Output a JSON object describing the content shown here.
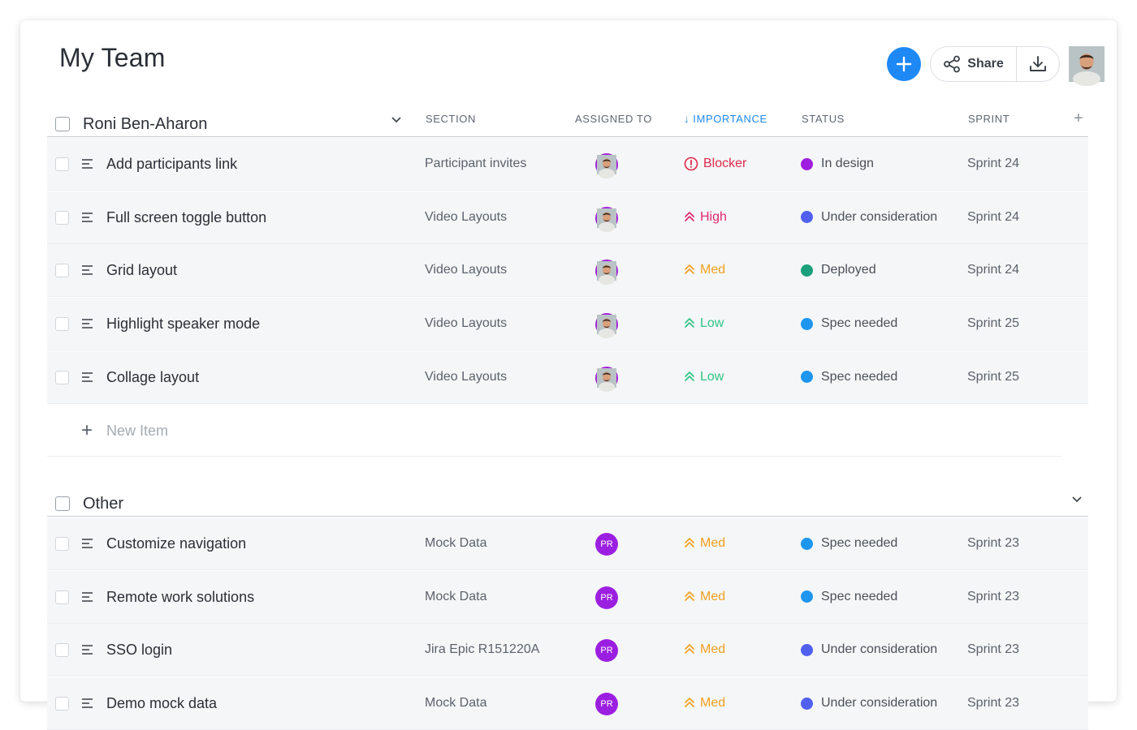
{
  "header": {
    "title": "My Team",
    "share_label": "Share",
    "icons": [
      "plus-icon",
      "share-icon",
      "download-icon"
    ]
  },
  "columns": {
    "section": "SECTION",
    "assigned_to": "ASSIGNED TO",
    "importance": "↓ IMPORTANCE",
    "status": "STATUS",
    "sprint": "SPRINT"
  },
  "groups": [
    {
      "name": "Roni Ben-Aharon",
      "new_item_label": "New Item",
      "items": [
        {
          "title": "Add participants link",
          "section": "Participant invites",
          "assignee": "photo",
          "importance": "Blocker",
          "status": "In design",
          "sprint": "Sprint 24"
        },
        {
          "title": "Full screen toggle button",
          "section": "Video Layouts",
          "assignee": "photo",
          "importance": "High",
          "status": "Under consideration",
          "sprint": "Sprint 24"
        },
        {
          "title": "Grid layout",
          "section": "Video Layouts",
          "assignee": "photo",
          "importance": "Med",
          "status": "Deployed",
          "sprint": "Sprint 24"
        },
        {
          "title": "Highlight speaker mode",
          "section": "Video Layouts",
          "assignee": "photo",
          "importance": "Low",
          "status": "Spec needed",
          "sprint": "Sprint 25"
        },
        {
          "title": "Collage layout",
          "section": "Video Layouts",
          "assignee": "photo",
          "importance": "Low",
          "status": "Spec needed",
          "sprint": "Sprint 25"
        }
      ]
    },
    {
      "name": "Other",
      "items": [
        {
          "title": "Customize navigation",
          "section": "Mock Data",
          "assignee": "PR",
          "importance": "Med",
          "status": "Spec needed",
          "sprint": "Sprint 23"
        },
        {
          "title": "Remote work solutions",
          "section": "Mock Data",
          "assignee": "PR",
          "importance": "Med",
          "status": "Spec needed",
          "sprint": "Sprint 23"
        },
        {
          "title": "SSO login",
          "section": "Jira Epic R151220A",
          "assignee": "PR",
          "importance": "Med",
          "status": "Under consideration",
          "sprint": "Sprint 23"
        },
        {
          "title": "Demo mock data",
          "section": "Mock Data",
          "assignee": "PR",
          "importance": "Med",
          "status": "Under consideration",
          "sprint": "Sprint 23"
        }
      ]
    }
  ],
  "colors": {
    "accent": "#1e88f5",
    "blocker": "#e0284a",
    "high": "#e0286e",
    "med": "#f0a020",
    "low": "#2ec486",
    "in_design": "#a01ee0",
    "under_consideration": "#5060f0",
    "deployed": "#1aa07a",
    "spec_needed": "#1e96f0",
    "assignee_initials": "#9b1fe0"
  }
}
